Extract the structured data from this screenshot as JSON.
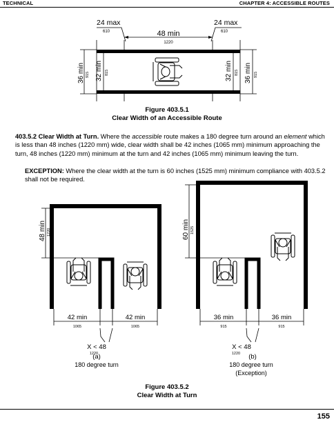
{
  "header": {
    "left": "TECHNICAL",
    "right": "CHAPTER 4: ACCESSIBLE ROUTES"
  },
  "figure1": {
    "dims": {
      "side_max": "24 max",
      "side_max_mm": "610",
      "center_min": "48 min",
      "center_min_mm": "1220",
      "outer_min": "36 min",
      "outer_min_mm": "915",
      "inner_min": "32 min",
      "inner_min_mm": "815"
    },
    "caption_number": "Figure 403.5.1",
    "caption_title": "Clear Width of an Accessible Route"
  },
  "section": {
    "heading": "403.5.2 Clear Width at Turn.",
    "text_1": " Where the ",
    "em_1": "accessible",
    "text_2": " route makes a 180 degree turn around an ",
    "em_2": "element",
    "text_3": " which is less than 48 inches (1220 mm) wide, clear width shall be 42 inches (1065 mm) minimum approaching the turn, 48 inches (1220 mm) minimum at the turn and 42 inches (1065 mm) minimum leaving the turn.",
    "exception_label": "EXCEPTION:",
    "exception_text": " Where the clear width at the turn is 60 inches (1525 mm) minimum compliance with 403.5.2 shall not be required."
  },
  "figure2": {
    "a": {
      "turn_dim": "48 min",
      "turn_dim_mm": "1220",
      "left_dim": "42 min",
      "left_dim_mm": "1065",
      "right_dim": "42 min",
      "right_dim_mm": "1065",
      "x_label": "X < 48",
      "x_mm": "1220",
      "sub_label": "(a)",
      "sub_desc": "180 degree turn"
    },
    "b": {
      "turn_dim": "60 min",
      "turn_dim_mm": "1525",
      "left_dim": "36 min",
      "left_dim_mm": "915",
      "right_dim": "36 min",
      "right_dim_mm": "915",
      "x_label": "X < 48",
      "x_mm": "1220",
      "sub_label": "(b)",
      "sub_desc": "180 degree turn",
      "sub_note": "(Exception)"
    },
    "caption_number": "Figure 403.5.2",
    "caption_title": "Clear Width at Turn"
  },
  "page_number": "155"
}
